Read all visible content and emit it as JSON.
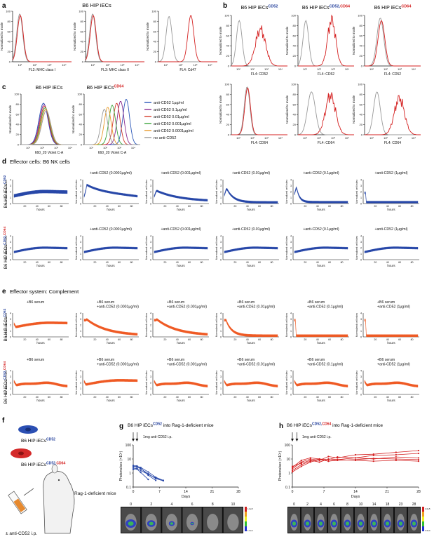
{
  "panel_letters": [
    "a",
    "b",
    "c",
    "d",
    "e",
    "f",
    "g",
    "h"
  ],
  "panel_a": {
    "header": "B6 HIP iECs",
    "ylabel": "Normalized to mode",
    "plots": [
      {
        "xlabel": "FL3: MHC class I"
      },
      {
        "xlabel": "FL3: MHC class II"
      },
      {
        "xlabel": "FL4: Cd47"
      }
    ]
  },
  "panel_b": {
    "titles": [
      {
        "base": "B6 HIP iECs",
        "sup_parts": [
          {
            "text": "CD52",
            "color": "#1f3c9a"
          }
        ]
      },
      {
        "base": "B6 HIP iECs",
        "sup_parts": [
          {
            "text": "CD52,",
            "color": "#1f3c9a"
          },
          {
            "text": "CD64",
            "color": "#d42020"
          }
        ]
      },
      {
        "base": "B6 HIP iECs",
        "sup_parts": [
          {
            "text": "CD64",
            "color": "#d42020"
          }
        ]
      }
    ],
    "ylabel": "Normalized to mode",
    "row1_xlabel": "FL4: CD52",
    "row2_xlabel": "FL4: CD64"
  },
  "panel_c": {
    "titles": [
      {
        "base": "B6 HIP iECs",
        "sup_parts": []
      },
      {
        "base": "B6 HIP iECs",
        "sup_parts": [
          {
            "text": "CD64",
            "color": "#d42020"
          }
        ]
      }
    ],
    "ylabel": "Normalized to mode",
    "xlabel": "660_20 Violet C-A",
    "legend": [
      {
        "label": "anti-CD52 1µg/ml",
        "color": "#2a56b8"
      },
      {
        "label": "anti-CD52 0.1µg/ml",
        "color": "#8a2a8f"
      },
      {
        "label": "anti-CD52 0.01µg/ml",
        "color": "#d43a2a"
      },
      {
        "label": "anti-CD52 0.001µg/ml",
        "color": "#3aa53a"
      },
      {
        "label": "anti-CD52 0.0001µg/ml",
        "color": "#e89a2a"
      },
      {
        "label": "no anti-CD52",
        "color": "#999999"
      }
    ]
  },
  "panel_d": {
    "header": "Effector cells: B6 NK cells",
    "col_labels": [
      "",
      "+anti-CD52 (0.0001µg/ml)",
      "+anti-CD52 (0.001µg/ml)",
      "+anti-CD52 (0.01µg/ml)",
      "+anti-CD52 (0.1µg/ml)",
      "+anti-CD52 (1µg/ml)"
    ],
    "row_labels": [
      {
        "base": "B6 HIP iECs",
        "sup_parts": [
          {
            "text": "CD52",
            "color": "#1f3c9a"
          }
        ]
      },
      {
        "base": "B6 HIP iECs",
        "sup_parts": [
          {
            "text": "CD52,",
            "color": "#1f3c9a"
          },
          {
            "text": "CD64",
            "color": "#d42020"
          }
        ]
      }
    ],
    "ylabel": "Normalized cell index",
    "xlabel": "hours"
  },
  "panel_e": {
    "header": "Effector system: Complement",
    "col_labels": [
      [
        "+B6 serum"
      ],
      [
        "+B6 serum",
        "+anti-CD52 (0.0001µg/ml)"
      ],
      [
        "+B6 serum",
        "+anti-CD52 (0.001µg/ml)"
      ],
      [
        "+B6 serum",
        "+anti-CD52 (0.01µg/ml)"
      ],
      [
        "+B6 serum",
        "+anti-CD52 (0.1µg/ml)"
      ],
      [
        "+B6 serum",
        "+anti-CD52 (1µg/ml)"
      ]
    ],
    "row_labels": [
      {
        "base": "B6 HIP iECs",
        "sup_parts": [
          {
            "text": "CD52",
            "color": "#1f3c9a"
          }
        ]
      },
      {
        "base": "B6 HIP iECs",
        "sup_parts": [
          {
            "text": "CD52,",
            "color": "#1f3c9a"
          },
          {
            "text": "CD64",
            "color": "#d42020"
          }
        ]
      }
    ],
    "ylabel": "Normalized cell index",
    "xlabel": "hours"
  },
  "panel_f": {
    "cell1": {
      "base": "B6 HIP iECs",
      "sup_parts": [
        {
          "text": "CD52",
          "color": "#1f3c9a"
        }
      ]
    },
    "cell2": {
      "base": "B6 HIP iECs",
      "sup_parts": [
        {
          "text": "CD52,",
          "color": "#1f3c9a"
        },
        {
          "text": "CD64",
          "color": "#d42020"
        }
      ]
    },
    "mouse_label": "Rag-1-deficient mice",
    "injection_label": "± anti-CD52 i.p."
  },
  "panel_g": {
    "title": {
      "base": "B6 HIP iECs",
      "sup_parts": [
        {
          "text": "CD52",
          "color": "#1f3c9a"
        }
      ],
      "suffix": " into Rag-1-deficient mice"
    },
    "annotation": "1mg anti-CD52 i.p.",
    "ylabel": "Photons/sec (×10⁷)",
    "xlabel": "Days",
    "image_day_labels": [
      "0",
      "2",
      "4",
      "6",
      "8",
      "10"
    ],
    "scale_max": "1.0e5",
    "scale_min": "1.0e4"
  },
  "panel_h": {
    "title": {
      "base": "B6 HIP iECs",
      "sup_parts": [
        {
          "text": "CD52,",
          "color": "#1f3c9a"
        },
        {
          "text": "CD64",
          "color": "#d42020"
        }
      ],
      "suffix": " into Rag-1-deficient mice"
    },
    "annotation": "1mg anti-CD52 i.p.",
    "ylabel": "Photons/sec (×10⁷)",
    "xlabel": "Days",
    "image_day_labels": [
      "0",
      "2",
      "4",
      "6",
      "8",
      "10",
      "14",
      "18",
      "23",
      "28"
    ],
    "scale_max": "1.0e5",
    "scale_min": "1.0e4"
  },
  "chart_data": [
    {
      "id": "g",
      "type": "line",
      "x_ticks": [
        0,
        7,
        14,
        21,
        28
      ],
      "y_ticks": [
        "0.1",
        "1",
        "10",
        "100"
      ],
      "ylim": [
        0.1,
        100
      ],
      "y_log": true,
      "xlim": [
        0,
        28
      ],
      "series": [
        {
          "x": [
            0,
            1,
            2,
            4,
            6,
            8
          ],
          "y": [
            3,
            3,
            2.5,
            1.2,
            0.5,
            0.3
          ]
        },
        {
          "x": [
            0,
            1,
            2,
            4,
            6,
            8
          ],
          "y": [
            2.5,
            2.8,
            2,
            0.9,
            0.4,
            0.28
          ]
        },
        {
          "x": [
            0,
            1,
            2,
            4,
            6
          ],
          "y": [
            3.5,
            3.2,
            2.2,
            0.7,
            0.3
          ]
        },
        {
          "x": [
            0,
            1,
            2,
            4,
            6,
            8
          ],
          "y": [
            2,
            2.2,
            1.5,
            0.8,
            0.45,
            0.3
          ]
        },
        {
          "x": [
            0,
            1,
            2,
            4
          ],
          "y": [
            1.8,
            1.9,
            1.1,
            0.35
          ]
        }
      ]
    },
    {
      "id": "h",
      "type": "line",
      "x_ticks": [
        0,
        7,
        14,
        21,
        28
      ],
      "y_ticks": [
        "0.1",
        "1",
        "10",
        "100"
      ],
      "ylim": [
        0.1,
        100
      ],
      "y_log": true,
      "xlim": [
        0,
        28
      ],
      "series": [
        {
          "x": [
            0,
            2,
            4,
            6,
            8,
            10,
            14,
            18,
            23,
            28
          ],
          "y": [
            2,
            6,
            10,
            8,
            15,
            12,
            20,
            22,
            30,
            40
          ]
        },
        {
          "x": [
            0,
            2,
            4,
            6,
            8,
            10,
            14,
            18,
            23,
            28
          ],
          "y": [
            1.5,
            4,
            7,
            10,
            9,
            14,
            12,
            18,
            20,
            25
          ]
        },
        {
          "x": [
            0,
            2,
            4,
            6,
            8,
            10,
            14,
            18,
            23,
            28
          ],
          "y": [
            3,
            5,
            8,
            6,
            10,
            9,
            12,
            10,
            14,
            12
          ]
        },
        {
          "x": [
            0,
            2,
            4,
            6,
            8,
            10,
            14,
            18,
            23,
            28
          ],
          "y": [
            1.2,
            3,
            6,
            9,
            7,
            8,
            9,
            11,
            10,
            9
          ]
        },
        {
          "x": [
            0,
            2,
            4,
            6,
            8,
            10,
            14,
            18,
            23,
            28
          ],
          "y": [
            2.5,
            8,
            12,
            10,
            7,
            9,
            8,
            7,
            8,
            7
          ]
        }
      ]
    }
  ]
}
